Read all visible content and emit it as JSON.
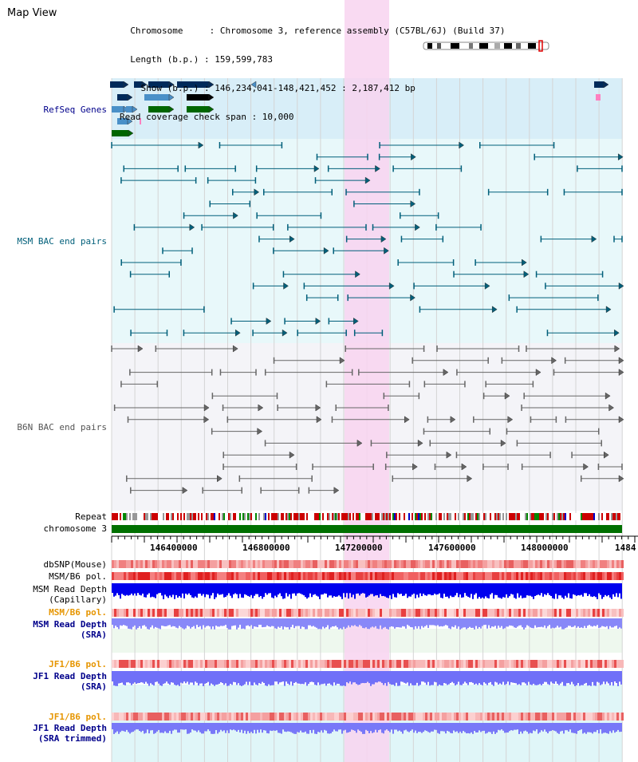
{
  "header": {
    "title": "Map View",
    "info_lines": [
      "  Chromosome     : Chromosome 3, reference assembly (C57BL/6J) (Build 37)",
      "  Length (b.p.) : 159,599,783",
      "    Show (b.p.) : 146,234,041-148,421,452 : 2,187,412 bp",
      "Read coverage check span : 10,000"
    ]
  },
  "tracks": {
    "refseq": "RefSeq Genes",
    "msm_bac": "MSM BAC end pairs",
    "b6n_bac": "B6N BAC end pairs",
    "repeat": "Repeat",
    "chromosome": "chromosome 3",
    "dbsnp": "dbSNP(Mouse)",
    "msm_pol": "MSM/B6 pol.",
    "msm_depth_cap": "MSM Read Depth\n(Capillary)",
    "msm_pol_sra": "MSM/B6 pol.",
    "msm_depth_sra": "MSM Read Depth\n(SRA)",
    "jf1_pol": "JF1/B6 pol.",
    "jf1_depth": "JF1 Read Depth\n(SRA)",
    "jf1_pol_trim": "JF1/B6 pol.",
    "jf1_depth_trim": "JF1 Read Depth\n(SRA trimmed)"
  },
  "axis": {
    "ticks": [
      "146400000",
      "146800000",
      "147200000",
      "147600000",
      "148000000",
      "1484"
    ]
  },
  "colors": {
    "refseq_dark": "#002a5a",
    "refseq_light": "#4a90c8",
    "refseq_green": "#006600",
    "msm_bac": "#005f7a",
    "b6n_bac": "#666666",
    "highlight": "#f8d4f0",
    "label_blue": "#00008b",
    "label_teal": "#005f7a",
    "label_orange": "#e69500",
    "chromosome_green": "#007000"
  }
}
